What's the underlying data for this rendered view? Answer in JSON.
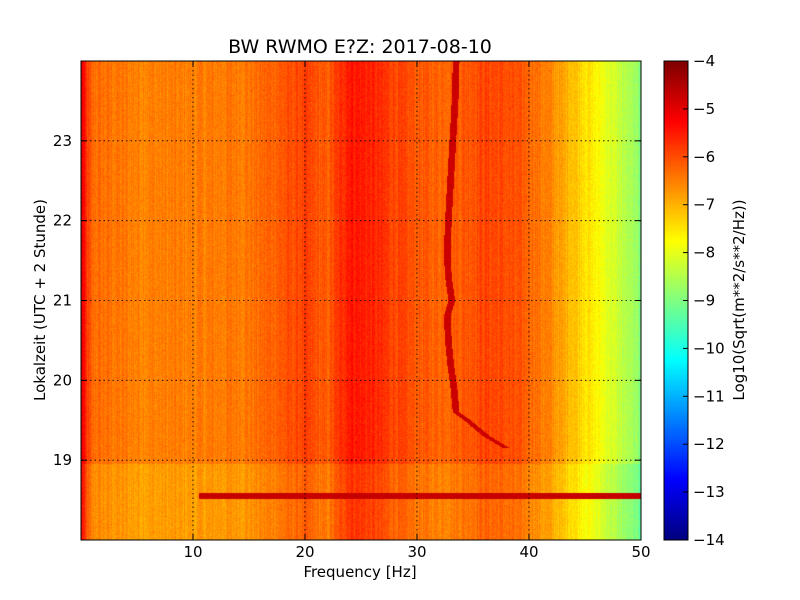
{
  "chart_data": {
    "type": "heatmap",
    "title": "BW RWMO E?Z: 2017-08-10",
    "xlabel": "Frequency [Hz]",
    "ylabel": "Lokalzeit (UTC + 2 Stunde)",
    "xlim": [
      0,
      50
    ],
    "ylim": [
      24,
      18
    ],
    "x_ticks": [
      10,
      20,
      30,
      40,
      50
    ],
    "y_ticks": [
      19,
      20,
      21,
      22,
      23
    ],
    "grid": true,
    "colormap": "jet",
    "colorbar": {
      "label": "Log10(Sqrt(m**2/s**2/Hz))",
      "range": [
        -14,
        -4
      ],
      "ticks": [
        -4,
        -5,
        -6,
        -7,
        -8,
        -9,
        -10,
        -11,
        -12,
        -13,
        -14
      ]
    },
    "spectrum_profile": {
      "frequency_hz": [
        0,
        0.5,
        1,
        5,
        10,
        15,
        18,
        20,
        22,
        24,
        26,
        28,
        30,
        32,
        34,
        36,
        38,
        40,
        41,
        42,
        43,
        44,
        45,
        46,
        47,
        48,
        49,
        50
      ],
      "log_amplitude": [
        -4.9,
        -5.8,
        -6.3,
        -6.5,
        -6.5,
        -6.4,
        -6.1,
        -5.9,
        -6.2,
        -5.4,
        -5.6,
        -5.9,
        -6.1,
        -6.2,
        -6.1,
        -5.9,
        -6.0,
        -6.2,
        -6.4,
        -6.6,
        -6.9,
        -7.1,
        -7.4,
        -7.7,
        -8.0,
        -8.3,
        -8.6,
        -8.9
      ]
    },
    "features": [
      {
        "type": "line",
        "time": 18.55,
        "freq_start": 10.5,
        "freq_end": 50,
        "log_amplitude": -4.6
      },
      {
        "type": "band",
        "time_start": 18.0,
        "time_end": 18.95,
        "log_amplitude_offset": -0.3
      },
      {
        "type": "drifting_line",
        "log_amplitude": -4.6,
        "points": [
          {
            "time": 19.15,
            "freq": 38.0
          },
          {
            "time": 19.3,
            "freq": 36.2
          },
          {
            "time": 19.5,
            "freq": 34.5
          },
          {
            "time": 19.6,
            "freq": 33.5
          },
          {
            "time": 19.9,
            "freq": 33.3
          },
          {
            "time": 20.2,
            "freq": 33.0
          },
          {
            "time": 20.5,
            "freq": 32.8
          },
          {
            "time": 20.8,
            "freq": 32.7
          },
          {
            "time": 21.0,
            "freq": 33.1
          },
          {
            "time": 21.3,
            "freq": 32.8
          },
          {
            "time": 21.6,
            "freq": 32.7
          },
          {
            "time": 22.0,
            "freq": 32.8
          },
          {
            "time": 22.5,
            "freq": 33.0
          },
          {
            "time": 23.0,
            "freq": 33.2
          },
          {
            "time": 23.5,
            "freq": 33.4
          },
          {
            "time": 24.0,
            "freq": 33.5
          }
        ]
      }
    ]
  }
}
